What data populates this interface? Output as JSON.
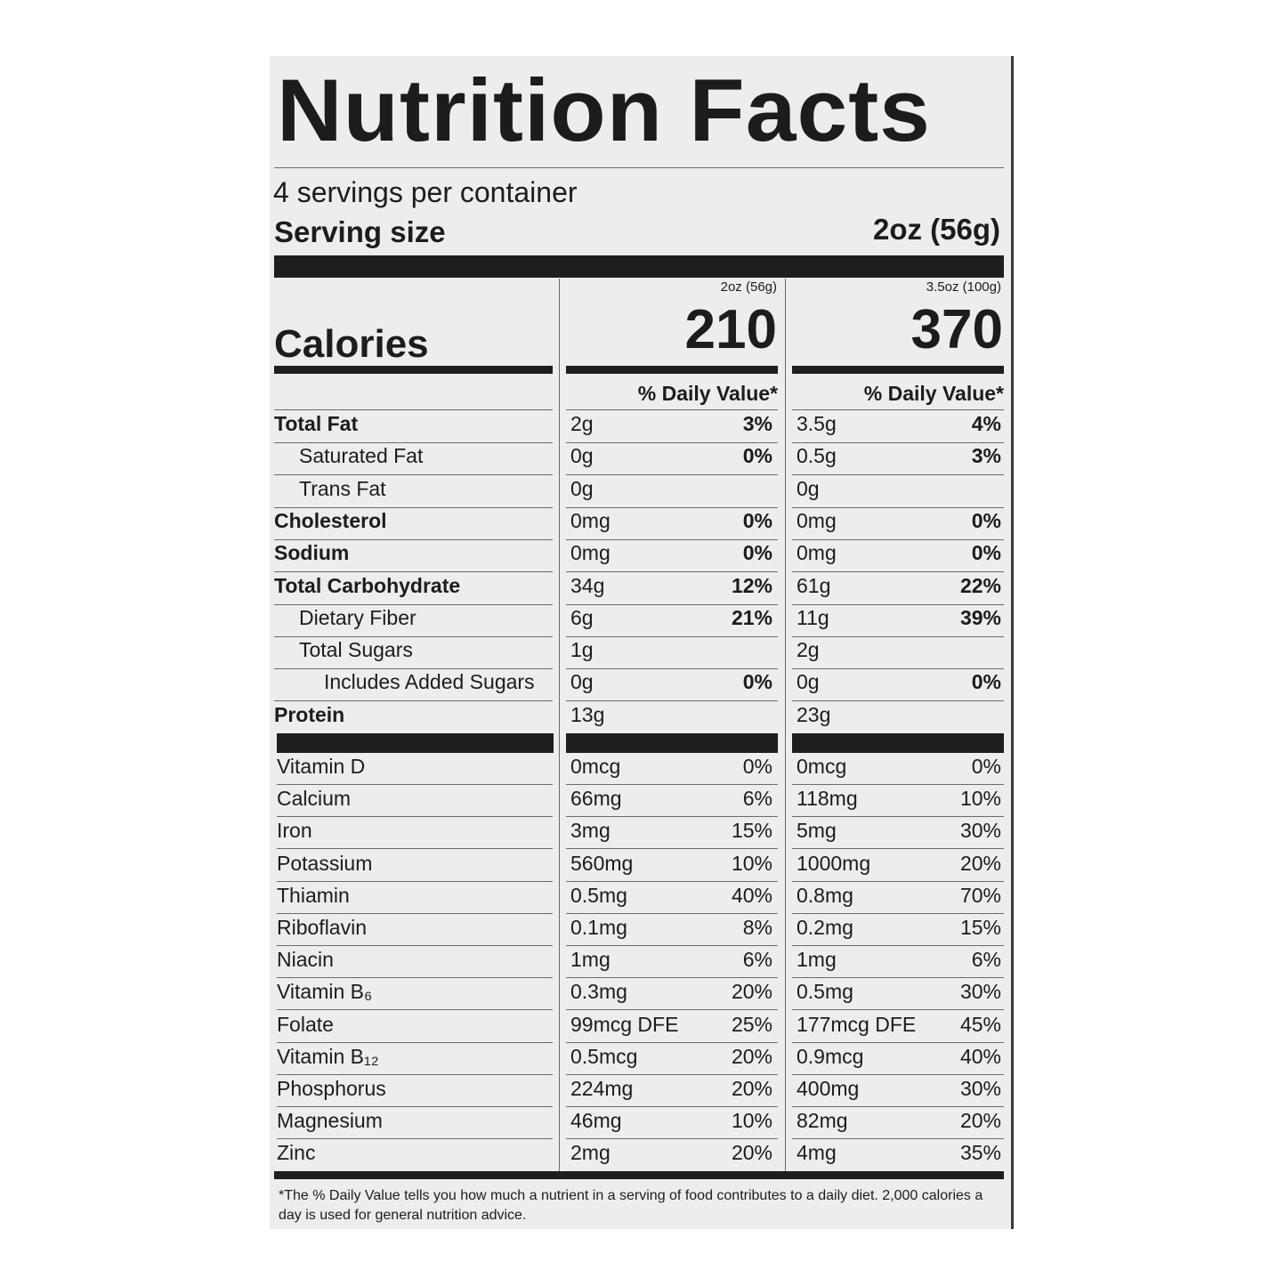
{
  "title": "Nutrition Facts",
  "servings_per_container": "4 servings per container",
  "serving_size_label": "Serving size",
  "serving_size_value": "2oz (56g)",
  "columns": [
    {
      "serving": "2oz (56g)",
      "calories": "210",
      "dv_header": "% Daily Value*"
    },
    {
      "serving": "3.5oz (100g)",
      "calories": "370",
      "dv_header": "% Daily Value*"
    }
  ],
  "calories_label": "Calories",
  "nutrients": [
    {
      "label": "Total Fat",
      "bold": true,
      "indent": 0,
      "values": [
        [
          "2g",
          "3%"
        ],
        [
          "3.5g",
          "4%"
        ]
      ]
    },
    {
      "label": "Saturated Fat",
      "bold": false,
      "indent": 1,
      "values": [
        [
          "0g",
          "0%"
        ],
        [
          "0.5g",
          "3%"
        ]
      ]
    },
    {
      "label": "Trans Fat",
      "bold": false,
      "indent": 1,
      "values": [
        [
          "0g",
          ""
        ],
        [
          "0g",
          ""
        ]
      ]
    },
    {
      "label": "Cholesterol",
      "bold": true,
      "indent": 0,
      "values": [
        [
          "0mg",
          "0%"
        ],
        [
          "0mg",
          "0%"
        ]
      ]
    },
    {
      "label": "Sodium",
      "bold": true,
      "indent": 0,
      "values": [
        [
          "0mg",
          "0%"
        ],
        [
          "0mg",
          "0%"
        ]
      ]
    },
    {
      "label": "Total Carbohydrate",
      "bold": true,
      "indent": 0,
      "values": [
        [
          "34g",
          "12%"
        ],
        [
          "61g",
          "22%"
        ]
      ]
    },
    {
      "label": "Dietary Fiber",
      "bold": false,
      "indent": 1,
      "values": [
        [
          "6g",
          "21%"
        ],
        [
          "11g",
          "39%"
        ]
      ]
    },
    {
      "label": "Total Sugars",
      "bold": false,
      "indent": 1,
      "values": [
        [
          "1g",
          ""
        ],
        [
          "2g",
          ""
        ]
      ]
    },
    {
      "label": "Includes Added Sugars",
      "bold": false,
      "indent": 2,
      "values": [
        [
          "0g",
          "0%"
        ],
        [
          "0g",
          "0%"
        ]
      ]
    },
    {
      "label": "Protein",
      "bold": true,
      "indent": 0,
      "values": [
        [
          "13g",
          ""
        ],
        [
          "23g",
          ""
        ]
      ]
    }
  ],
  "vitamins": [
    {
      "label": "Vitamin D",
      "values": [
        [
          "0mcg",
          "0%"
        ],
        [
          "0mcg",
          "0%"
        ]
      ]
    },
    {
      "label": "Calcium",
      "values": [
        [
          "66mg",
          "6%"
        ],
        [
          "118mg",
          "10%"
        ]
      ]
    },
    {
      "label": "Iron",
      "values": [
        [
          "3mg",
          "15%"
        ],
        [
          "5mg",
          "30%"
        ]
      ]
    },
    {
      "label": "Potassium",
      "values": [
        [
          "560mg",
          "10%"
        ],
        [
          "1000mg",
          "20%"
        ]
      ]
    },
    {
      "label": "Thiamin",
      "values": [
        [
          "0.5mg",
          "40%"
        ],
        [
          "0.8mg",
          "70%"
        ]
      ]
    },
    {
      "label": "Riboflavin",
      "values": [
        [
          "0.1mg",
          "8%"
        ],
        [
          "0.2mg",
          "15%"
        ]
      ]
    },
    {
      "label": "Niacin",
      "values": [
        [
          "1mg",
          "6%"
        ],
        [
          "1mg",
          "6%"
        ]
      ]
    },
    {
      "label": "Vitamin B₆",
      "values": [
        [
          "0.3mg",
          "20%"
        ],
        [
          "0.5mg",
          "30%"
        ]
      ]
    },
    {
      "label": "Folate",
      "values": [
        [
          "99mcg DFE",
          "25%"
        ],
        [
          "177mcg DFE",
          "45%"
        ]
      ]
    },
    {
      "label": "Vitamin B₁₂",
      "values": [
        [
          "0.5mcg",
          "20%"
        ],
        [
          "0.9mcg",
          "40%"
        ]
      ]
    },
    {
      "label": "Phosphorus",
      "values": [
        [
          "224mg",
          "20%"
        ],
        [
          "400mg",
          "30%"
        ]
      ]
    },
    {
      "label": "Magnesium",
      "values": [
        [
          "46mg",
          "10%"
        ],
        [
          "82mg",
          "20%"
        ]
      ]
    },
    {
      "label": "Zinc",
      "values": [
        [
          "2mg",
          "20%"
        ],
        [
          "4mg",
          "35%"
        ]
      ]
    }
  ],
  "footnote": "*The % Daily Value tells you how much a nutrient in a serving of food contributes to a daily diet. 2,000 calories a day is used for general nutrition advice."
}
